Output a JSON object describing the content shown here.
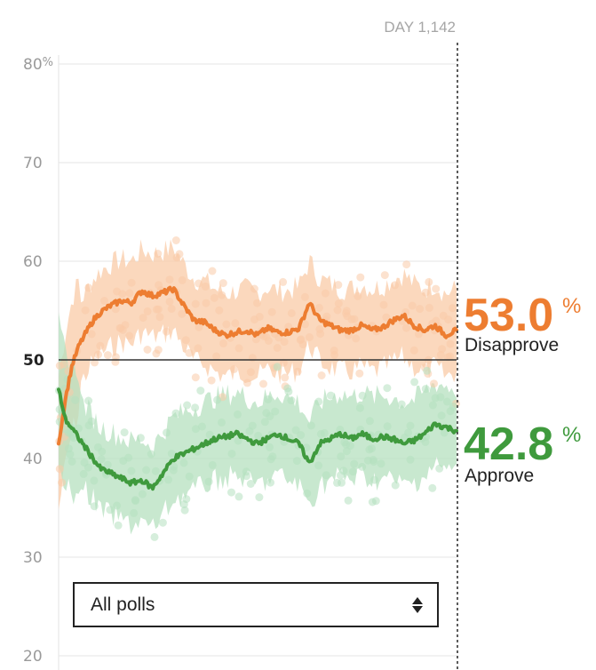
{
  "chart_data": {
    "type": "line",
    "x_axis": {
      "range": [
        1,
        1142
      ],
      "marker_label": "DAY 1,142"
    },
    "y_axis": {
      "range": [
        20,
        80
      ],
      "ticks": [
        {
          "value": 80,
          "label": "80",
          "suffix": "%"
        },
        {
          "value": 70,
          "label": "70"
        },
        {
          "value": 60,
          "label": "60"
        },
        {
          "value": 50,
          "label": "50"
        },
        {
          "value": 40,
          "label": "40"
        },
        {
          "value": 30,
          "label": "30"
        },
        {
          "value": 20,
          "label": "20"
        }
      ]
    },
    "grid": true,
    "series": [
      {
        "name": "Disapprove",
        "color": "#ed7d31",
        "band_color": "#f9cba7",
        "current_value": "53.0",
        "current_suffix": "%",
        "x": [
          1,
          20,
          40,
          60,
          80,
          100,
          120,
          150,
          180,
          210,
          240,
          270,
          300,
          330,
          360,
          390,
          420,
          450,
          480,
          510,
          540,
          570,
          600,
          630,
          660,
          690,
          720,
          750,
          780,
          810,
          840,
          870,
          900,
          930,
          960,
          990,
          1020,
          1050,
          1080,
          1110,
          1142
        ],
        "values": [
          41.5,
          46.0,
          49.5,
          51.5,
          52.8,
          54.0,
          54.8,
          55.5,
          56.0,
          55.8,
          57.0,
          56.5,
          56.8,
          57.2,
          55.5,
          54.0,
          53.8,
          53.0,
          52.5,
          52.8,
          53.0,
          52.5,
          53.2,
          52.8,
          52.8,
          53.2,
          55.8,
          54.0,
          53.5,
          53.0,
          53.0,
          53.5,
          53.0,
          53.3,
          54.0,
          54.5,
          53.5,
          53.0,
          53.5,
          52.5,
          53.0
        ]
      },
      {
        "name": "Approve",
        "color": "#3f9a3d",
        "band_color": "#b5e0bf",
        "current_value": "42.8",
        "current_suffix": "%",
        "x": [
          1,
          20,
          40,
          60,
          80,
          100,
          120,
          150,
          180,
          210,
          240,
          270,
          300,
          330,
          360,
          390,
          420,
          450,
          480,
          510,
          540,
          570,
          600,
          630,
          660,
          690,
          720,
          750,
          780,
          810,
          840,
          870,
          900,
          930,
          960,
          990,
          1020,
          1050,
          1080,
          1110,
          1142
        ],
        "values": [
          47.0,
          44.0,
          43.0,
          42.0,
          41.0,
          40.0,
          39.0,
          38.5,
          38.0,
          37.5,
          37.8,
          37.0,
          38.5,
          40.0,
          40.5,
          41.0,
          41.5,
          42.0,
          42.2,
          42.5,
          42.0,
          41.5,
          42.0,
          42.5,
          42.0,
          41.5,
          39.5,
          41.5,
          42.0,
          42.5,
          42.0,
          42.5,
          42.0,
          42.2,
          42.0,
          41.5,
          41.8,
          42.5,
          43.5,
          43.2,
          42.8
        ]
      }
    ]
  },
  "filter": {
    "label": "All polls"
  }
}
